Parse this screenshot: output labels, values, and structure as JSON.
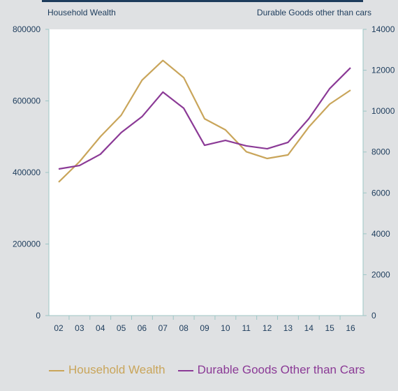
{
  "chart_data": {
    "type": "line",
    "y_label": "Household Wealth",
    "y2_label": "Durable Goods other than cars",
    "categories": [
      "02",
      "03",
      "04",
      "05",
      "06",
      "07",
      "08",
      "09",
      "10",
      "11",
      "12",
      "13",
      "14",
      "15",
      "16"
    ],
    "series": [
      {
        "name": "Household Wealth",
        "color": "#c9a55a",
        "values": [
          373000,
          430000,
          500000,
          560000,
          658000,
          713000,
          665000,
          550000,
          519000,
          458000,
          439000,
          449000,
          527000,
          591000,
          630000
        ]
      },
      {
        "name": "Durable Goods Other than Cars",
        "color": "#8b3a96",
        "axis": "y2",
        "values": [
          7170,
          7340,
          7890,
          8950,
          9730,
          10930,
          10140,
          8330,
          8570,
          8300,
          8160,
          8470,
          9630,
          11100,
          12120
        ]
      }
    ],
    "ylim": [
      0,
      800000
    ],
    "yticks": [
      0,
      200000,
      400000,
      600000,
      800000
    ],
    "y2lim": [
      0,
      14000
    ],
    "y2ticks": [
      0,
      2000,
      4000,
      6000,
      8000,
      10000,
      12000,
      14000
    ]
  }
}
